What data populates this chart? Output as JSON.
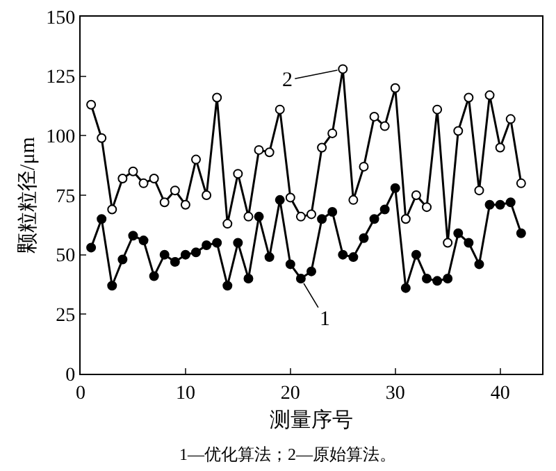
{
  "chart_data": {
    "type": "line",
    "xlabel": "测量序号",
    "ylabel": "颗粒粒径/μm",
    "x": [
      1,
      2,
      3,
      4,
      5,
      6,
      7,
      8,
      9,
      10,
      11,
      12,
      13,
      14,
      15,
      16,
      17,
      18,
      19,
      20,
      21,
      22,
      23,
      24,
      25,
      26,
      27,
      28,
      29,
      30,
      31,
      32,
      33,
      34,
      35,
      36,
      37,
      38,
      39,
      40,
      41,
      42
    ],
    "series": [
      {
        "color": "#000000",
        "values": [
          113,
          99,
          69,
          82,
          85,
          80,
          82,
          72,
          77,
          71,
          90,
          75,
          116,
          63,
          84,
          66,
          94,
          93,
          111,
          74,
          66,
          67,
          95,
          101,
          128,
          73,
          87,
          108,
          104,
          120,
          65,
          75,
          70,
          111,
          55,
          102,
          116,
          77,
          117,
          95,
          107,
          80
        ]
      },
      {
        "color": "#000000",
        "values": [
          53,
          65,
          37,
          48,
          58,
          56,
          41,
          50,
          47,
          50,
          51,
          54,
          55,
          37,
          55,
          40,
          66,
          49,
          73,
          46,
          40,
          43,
          65,
          68,
          50,
          49,
          57,
          65,
          69,
          78,
          36,
          50,
          40,
          39,
          40,
          59,
          55,
          46,
          71,
          71,
          72,
          59
        ]
      }
    ],
    "xlim": [
      0,
      44
    ],
    "xticks": [
      0,
      10,
      20,
      30,
      40
    ],
    "ylim": [
      0,
      150
    ],
    "yticks": [
      0,
      25,
      50,
      75,
      100,
      125,
      150
    ],
    "marker": "circle",
    "line_style": "solid",
    "annotations": [
      {
        "text": "2",
        "x": 25,
        "y": 128
      },
      {
        "text": "1",
        "x": 21,
        "y": 40
      },
      "1—优化算法；2—原始算法。"
    ]
  }
}
